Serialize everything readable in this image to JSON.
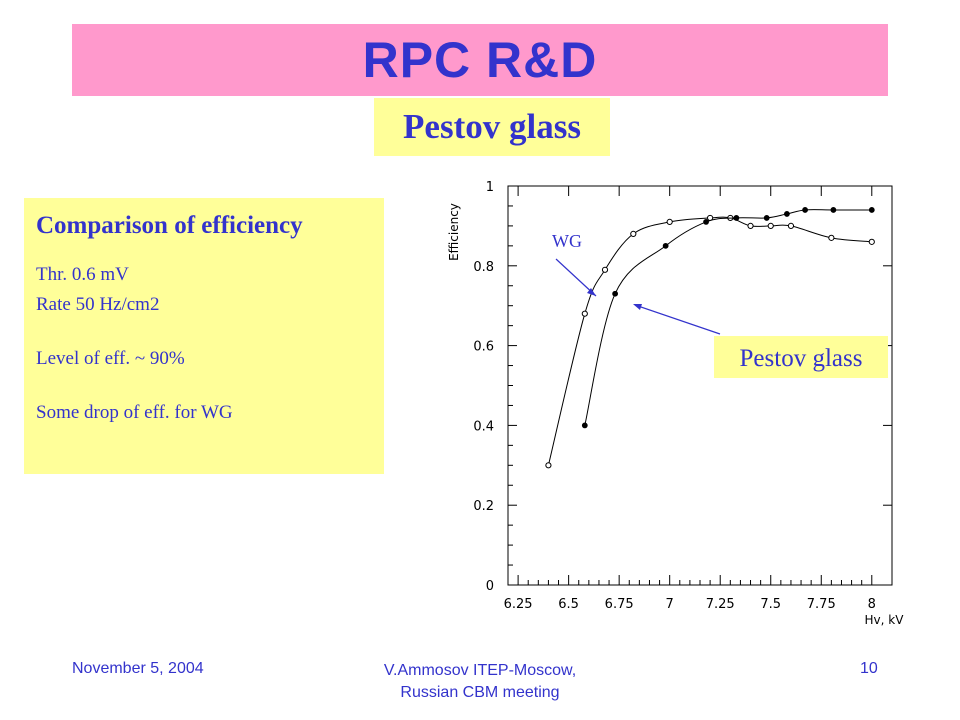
{
  "slide": {
    "title": "RPC R&D",
    "subtitle": "Pestov glass"
  },
  "info": {
    "heading": "Comparison of efficiency",
    "threshold": "Thr. 0.6 mV",
    "rate": "Rate 50 Hz/cm2",
    "level": "Level of eff. ~ 90%",
    "drop": "Some drop of eff. for WG"
  },
  "callouts": {
    "wg": "WG",
    "pestov": "Pestov glass"
  },
  "footer": {
    "date": "November 5, 2004",
    "author": "V.Ammosov    ITEP-Moscow,",
    "meeting": "Russian CBM meeting",
    "page": "10"
  },
  "colors": {
    "title_bg": "#ff99cc",
    "text_blue": "#3333cc",
    "highlight_bg": "#ffff99"
  },
  "chart_data": {
    "type": "line",
    "ylabel": "Efficiency",
    "xlabel": "Hv, kV",
    "xlim": [
      6.2,
      8.1
    ],
    "ylim": [
      0,
      1.0
    ],
    "x_ticks": [
      "6.25",
      "6.5",
      "6.75",
      "7",
      "7.25",
      "7.5",
      "7.75",
      "8"
    ],
    "x_tick_values": [
      6.25,
      6.5,
      6.75,
      7,
      7.25,
      7.5,
      7.75,
      8
    ],
    "y_ticks": [
      "0",
      "0.2",
      "0.4",
      "0.6",
      "0.8",
      "1"
    ],
    "y_tick_values": [
      0,
      0.2,
      0.4,
      0.6,
      0.8,
      1.0
    ],
    "grid": false,
    "series": [
      {
        "name": "WG",
        "marker": "open-circle",
        "x": [
          6.4,
          6.58,
          6.68,
          6.82,
          7.0,
          7.2,
          7.3,
          7.4,
          7.5,
          7.6,
          7.8,
          8.0
        ],
        "y": [
          0.3,
          0.68,
          0.79,
          0.88,
          0.91,
          0.92,
          0.92,
          0.9,
          0.9,
          0.9,
          0.87,
          0.86
        ]
      },
      {
        "name": "Pestov glass",
        "marker": "filled-circle",
        "x": [
          6.58,
          6.73,
          6.98,
          7.18,
          7.33,
          7.48,
          7.58,
          7.67,
          7.81,
          8.0
        ],
        "y": [
          0.4,
          0.73,
          0.85,
          0.91,
          0.92,
          0.92,
          0.93,
          0.94,
          0.94,
          0.94
        ]
      }
    ]
  }
}
